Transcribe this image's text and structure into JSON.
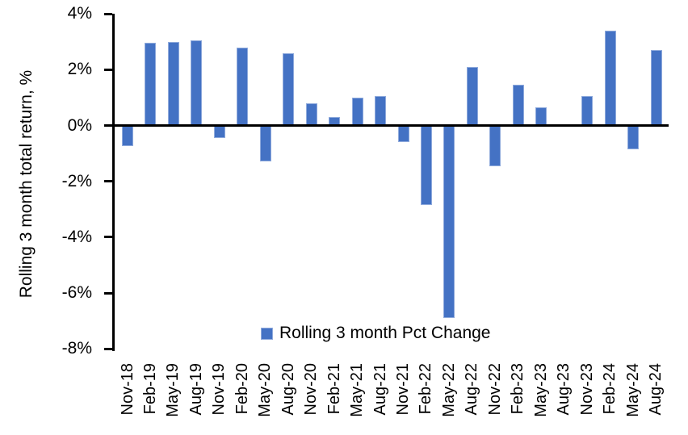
{
  "chart_data": {
    "type": "bar",
    "title": "",
    "xlabel": "",
    "ylabel": "Rolling 3 month total return, %",
    "ylim": [
      -8,
      4
    ],
    "yticks": [
      4,
      2,
      0,
      -2,
      -4,
      -6,
      -8
    ],
    "ytick_labels": [
      "4%",
      "2%",
      "0%",
      "-2%",
      "-4%",
      "-6%",
      "-8%"
    ],
    "grid": false,
    "legend_position": "bottom-center",
    "categories": [
      "Nov-18",
      "Feb-19",
      "May-19",
      "Aug-19",
      "Nov-19",
      "Feb-20",
      "May-20",
      "Aug-20",
      "Nov-20",
      "Feb-21",
      "May-21",
      "Aug-21",
      "Nov-21",
      "Feb-22",
      "May-22",
      "Aug-22",
      "Nov-22",
      "Feb-23",
      "May-23",
      "Aug-23",
      "Nov-23",
      "Feb-24",
      "May-24",
      "Aug-24"
    ],
    "series": [
      {
        "name": "Rolling 3 month Pct Change",
        "values": [
          -0.75,
          2.95,
          3.0,
          3.05,
          -0.45,
          2.8,
          -1.3,
          2.6,
          0.8,
          0.3,
          1.0,
          1.05,
          -0.6,
          -2.85,
          -6.9,
          2.1,
          -1.45,
          1.45,
          0.65,
          0.0,
          1.05,
          3.4,
          -0.85,
          2.7
        ]
      }
    ],
    "colors": {
      "bar_fill": "#4472C4",
      "bar_border": "#8FAADC",
      "axis": "#000000",
      "text": "#000000",
      "background": "#FFFFFF"
    }
  }
}
